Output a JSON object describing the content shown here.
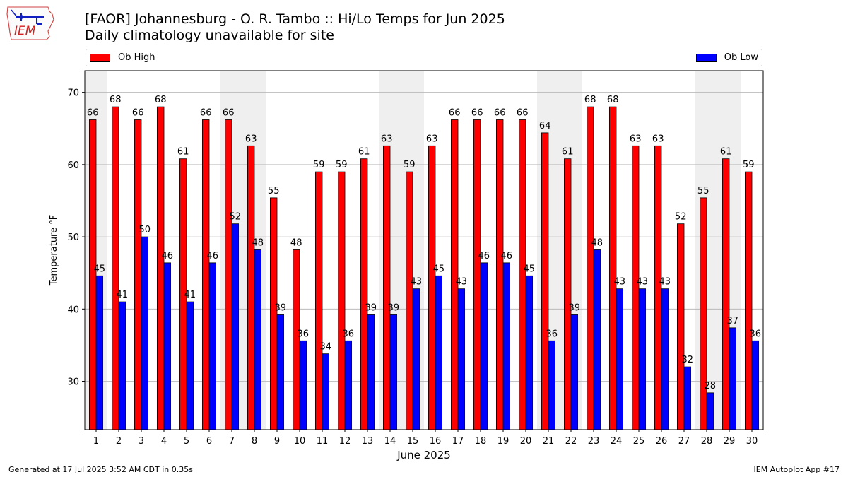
{
  "header": {
    "title_line1": "[FAOR] Johannesburg - O. R. Tambo :: Hi/Lo Temps for Jun 2025",
    "title_line2": "Daily climatology unavailable for site"
  },
  "logo": {
    "text": "IEM"
  },
  "legend": {
    "high_label": "Ob High",
    "low_label": "Ob Low",
    "placement": "top"
  },
  "footer": {
    "left": "Generated at 17 Jul 2025 3:52 AM CDT in 0.35s",
    "right": "IEM Autoplot App #17"
  },
  "colors": {
    "high": "#ff0000",
    "low": "#0000ff",
    "weekend_band": "#efefef",
    "grid": "#b0b0b0"
  },
  "chart_data": {
    "type": "bar",
    "title": "[FAOR] Johannesburg - O. R. Tambo :: Hi/Lo Temps for Jun 2025",
    "subtitle": "Daily climatology unavailable for site",
    "xlabel": "June 2025",
    "ylabel": "Temperature °F",
    "ylim": [
      23.3,
      73
    ],
    "yticks": [
      30,
      40,
      50,
      60,
      70
    ],
    "grid": true,
    "legend": "top",
    "categories": [
      "1",
      "2",
      "3",
      "4",
      "5",
      "6",
      "7",
      "8",
      "9",
      "10",
      "11",
      "12",
      "13",
      "14",
      "15",
      "16",
      "17",
      "18",
      "19",
      "20",
      "21",
      "22",
      "23",
      "24",
      "25",
      "26",
      "27",
      "28",
      "29",
      "30"
    ],
    "weekend_days": [
      1,
      7,
      8,
      14,
      15,
      21,
      22,
      28,
      29
    ],
    "series": [
      {
        "name": "Ob High",
        "color": "#ff0000",
        "values": [
          66.2,
          68,
          66.2,
          68,
          60.8,
          66.2,
          66.2,
          62.6,
          55.4,
          48.2,
          59,
          59,
          60.8,
          62.6,
          59,
          62.6,
          66.2,
          66.2,
          66.2,
          66.2,
          64.4,
          60.8,
          68,
          68,
          62.6,
          62.6,
          51.8,
          55.4,
          60.8,
          59
        ],
        "labels": [
          "66",
          "68",
          "66",
          "68",
          "61",
          "66",
          "66",
          "63",
          "55",
          "48",
          "59",
          "59",
          "61",
          "63",
          "59",
          "63",
          "66",
          "66",
          "66",
          "66",
          "64",
          "61",
          "68",
          "68",
          "63",
          "63",
          "52",
          "55",
          "61",
          "59"
        ]
      },
      {
        "name": "Ob Low",
        "color": "#0000ff",
        "values": [
          44.6,
          41,
          50,
          46.4,
          41,
          46.4,
          51.8,
          48.2,
          39.2,
          35.6,
          33.8,
          35.6,
          39.2,
          39.2,
          42.8,
          44.6,
          42.8,
          46.4,
          46.4,
          44.6,
          35.6,
          39.2,
          48.2,
          42.8,
          42.8,
          42.8,
          32,
          28.4,
          37.4,
          35.6
        ],
        "labels": [
          "45",
          "41",
          "50",
          "46",
          "41",
          "46",
          "52",
          "48",
          "39",
          "36",
          "34",
          "36",
          "39",
          "39",
          "43",
          "45",
          "43",
          "46",
          "46",
          "45",
          "36",
          "39",
          "48",
          "43",
          "43",
          "43",
          "32",
          "28",
          "37",
          "36"
        ]
      }
    ]
  }
}
